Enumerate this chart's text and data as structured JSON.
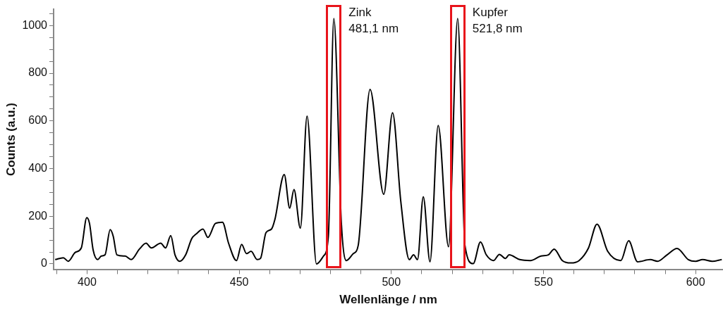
{
  "chart_data": {
    "type": "line",
    "xlabel": "Wellenlänge / nm",
    "ylabel": "Counts (a.u.)",
    "x": [
      389.5,
      392.2,
      393.8,
      396.1,
      398.1,
      399.9,
      400.8,
      402,
      403.5,
      404.7,
      405.9,
      407.6,
      408.6,
      409.8,
      412.5,
      414.5,
      417.2,
      419.4,
      421.1,
      424.2,
      425.8,
      427.5,
      428.9,
      430.5,
      432.4,
      434.4,
      435.9,
      438.1,
      439.7,
      442.2,
      444.5,
      446.5,
      449.1,
      450.8,
      452.4,
      453.9,
      455.9,
      457,
      458.8,
      460.6,
      461.7,
      464.8,
      466.6,
      468,
      470.1,
      472.3,
      475.4,
      477.7,
      479.3,
      481.1,
      483.6,
      485.2,
      487.5,
      489.1,
      493,
      497.5,
      500.4,
      503.1,
      505.9,
      507.3,
      508.6,
      510.5,
      512.7,
      515.4,
      518.8,
      521.8,
      524.2,
      526.9,
      529.3,
      531.2,
      533.6,
      535.5,
      537.5,
      538.7,
      542.2,
      545.7,
      549.2,
      551.6,
      553.5,
      556.2,
      559,
      561.7,
      564.8,
      567.6,
      571.1,
      575.4,
      578,
      580.9,
      585.1,
      587.5,
      590.6,
      593.9,
      597.6,
      600,
      602.3,
      605.5,
      608.6
    ],
    "series": [
      {
        "color": "#000000",
        "values": [
          18,
          26,
          11,
          48,
          67,
          194,
          170,
          58,
          18,
          33,
          38,
          144,
          116,
          38,
          33,
          18,
          62,
          87,
          67,
          87,
          67,
          119,
          38,
          11,
          38,
          106,
          126,
          146,
          111,
          170,
          175,
          87,
          14,
          82,
          43,
          53,
          18,
          23,
          131,
          146,
          185,
          375,
          234,
          312,
          150,
          620,
          0,
          33,
          116,
          1030,
          165,
          14,
          43,
          77,
          732,
          292,
          634,
          263,
          18,
          38,
          18,
          282,
          9,
          581,
          72,
          1030,
          77,
          1,
          92,
          38,
          14,
          40,
          23,
          38,
          18,
          14,
          33,
          38,
          62,
          14,
          4,
          14,
          67,
          167,
          53,
          14,
          97,
          9,
          18,
          11,
          38,
          65,
          18,
          11,
          18,
          11,
          18
        ]
      }
    ],
    "xlim": [
      389,
      609
    ],
    "xticks": [
      {
        "value": 390,
        "label": null
      },
      400,
      {
        "value": 410,
        "label": null
      },
      {
        "value": 420,
        "label": null
      },
      {
        "value": 430,
        "label": null
      },
      {
        "value": 440,
        "label": null
      },
      450,
      {
        "value": 460,
        "label": null
      },
      {
        "value": 470,
        "label": null
      },
      {
        "value": 480,
        "label": null
      },
      {
        "value": 490,
        "label": null
      },
      500,
      {
        "value": 510,
        "label": null
      },
      {
        "value": 520,
        "label": null
      },
      {
        "value": 530,
        "label": null
      },
      {
        "value": 540,
        "label": null
      },
      550,
      {
        "value": 560,
        "label": null
      },
      {
        "value": 570,
        "label": null
      },
      {
        "value": 580,
        "label": null
      },
      {
        "value": 590,
        "label": null
      },
      600
    ],
    "ylim": [
      -25,
      1070
    ],
    "yticks": [
      0,
      {
        "value": 50,
        "label": null
      },
      {
        "value": 100,
        "label": null
      },
      {
        "value": 150,
        "label": null
      },
      200,
      {
        "value": 250,
        "label": null
      },
      {
        "value": 300,
        "label": null
      },
      {
        "value": 350,
        "label": null
      },
      400,
      {
        "value": 450,
        "label": null
      },
      {
        "value": 500,
        "label": null
      },
      {
        "value": 550,
        "label": null
      },
      600,
      {
        "value": 650,
        "label": null
      },
      {
        "value": 700,
        "label": null
      },
      {
        "value": 750,
        "label": null
      },
      800,
      {
        "value": 850,
        "label": null
      },
      {
        "value": 900,
        "label": null
      },
      {
        "value": 950,
        "label": null
      },
      1000,
      {
        "value": 1050,
        "label": null
      }
    ],
    "grid": false,
    "legend": false,
    "marker": "none",
    "line_style": "solid",
    "annotations": [
      {
        "text": "Zink\n481,1 nm",
        "x": 481.1,
        "y": 1030
      },
      {
        "text": "Kupfer\n521,8 nm",
        "x": 521.8,
        "y": 1030
      }
    ]
  }
}
